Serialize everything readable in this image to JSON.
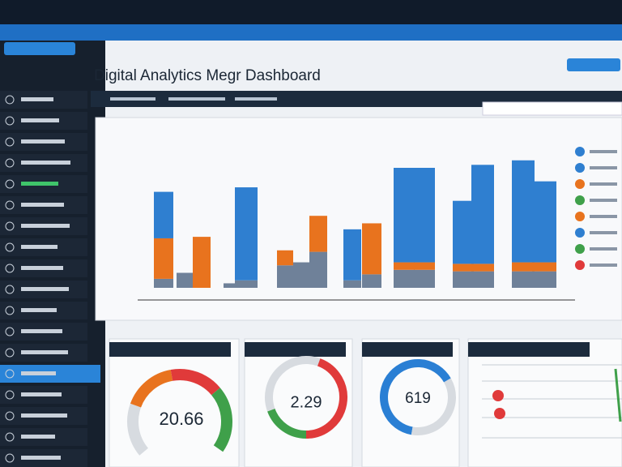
{
  "header": {
    "title": "Digital Analytics Megr Dashboard"
  },
  "chart_data": {
    "type": "bar",
    "categories": [
      null,
      null,
      null,
      null,
      null,
      null,
      null,
      null,
      null,
      null,
      null,
      null,
      null,
      null,
      null,
      null
    ],
    "series": [
      {
        "color": "#6f8199",
        "values": [
          6,
          10,
          0,
          3,
          5,
          15,
          17,
          24,
          5,
          9,
          12,
          12,
          11,
          11,
          11,
          11
        ]
      },
      {
        "color": "#e8731e",
        "values": [
          27,
          0,
          34,
          0,
          0,
          10,
          0,
          24,
          0,
          34,
          5,
          5,
          5,
          5,
          6,
          6
        ]
      },
      {
        "color": "#2f7fd0",
        "values": [
          31,
          0,
          0,
          0,
          62,
          0,
          0,
          0,
          34,
          0,
          63,
          63,
          42,
          66,
          68,
          54
        ]
      }
    ],
    "ylim": [
      0,
      100
    ]
  },
  "gauges": [
    {
      "value": "20.66"
    },
    {
      "value": "2.29"
    },
    {
      "value": "619"
    }
  ]
}
